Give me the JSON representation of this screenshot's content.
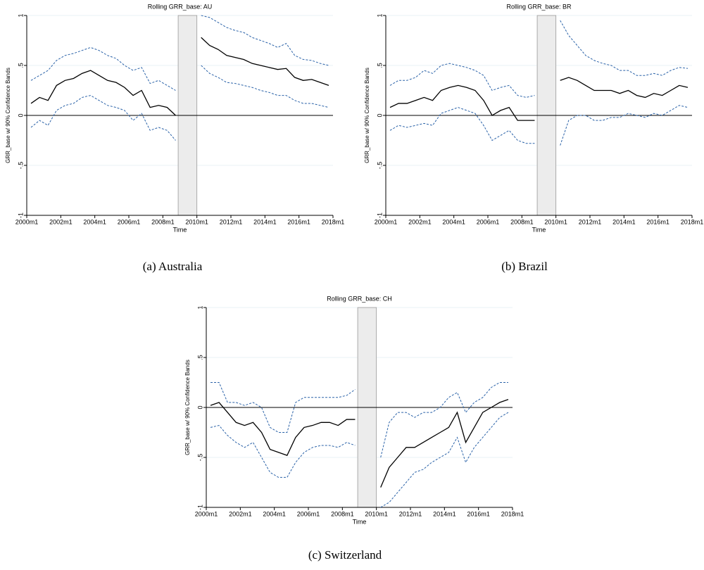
{
  "chart_data": [
    {
      "type": "line",
      "title": "Rolling GRR_base: AU",
      "caption": "(a) Australia",
      "xlabel": "Time",
      "ylabel": "GRR_base w/ 90% Confidence Bands",
      "x": [
        2000.25,
        2000.75,
        2001.25,
        2001.75,
        2002.25,
        2002.75,
        2003.25,
        2003.75,
        2004.25,
        2004.75,
        2005.25,
        2005.75,
        2006.25,
        2006.75,
        2007.25,
        2007.75,
        2008.25,
        2008.75,
        2009.25,
        2009.75,
        2010.25,
        2010.75,
        2011.25,
        2011.75,
        2012.25,
        2012.75,
        2013.25,
        2013.75,
        2014.25,
        2014.75,
        2015.25,
        2015.75,
        2016.25,
        2016.75,
        2017.25,
        2017.75
      ],
      "series": [
        {
          "color": "#000000",
          "dash": false,
          "values": [
            0.12,
            0.18,
            0.15,
            0.3,
            0.35,
            0.37,
            0.42,
            0.45,
            0.4,
            0.35,
            0.33,
            0.28,
            0.2,
            0.25,
            0.08,
            0.1,
            0.08,
            0.0,
            null,
            null,
            0.78,
            0.7,
            0.66,
            0.6,
            0.58,
            0.56,
            0.52,
            0.5,
            0.48,
            0.46,
            0.47,
            0.38,
            0.35,
            0.36,
            0.33,
            0.3
          ]
        },
        {
          "color": "#2a62a8",
          "dash": true,
          "values": [
            0.35,
            0.4,
            0.45,
            0.55,
            0.6,
            0.62,
            0.65,
            0.68,
            0.65,
            0.6,
            0.57,
            0.5,
            0.45,
            0.48,
            0.32,
            0.35,
            0.3,
            0.25,
            null,
            null,
            1.0,
            0.98,
            0.93,
            0.88,
            0.85,
            0.83,
            0.78,
            0.75,
            0.72,
            0.68,
            0.72,
            0.6,
            0.56,
            0.55,
            0.52,
            0.5
          ]
        },
        {
          "color": "#2a62a8",
          "dash": true,
          "values": [
            -0.12,
            -0.05,
            -0.1,
            0.05,
            0.1,
            0.12,
            0.18,
            0.2,
            0.15,
            0.1,
            0.08,
            0.05,
            -0.05,
            0.02,
            -0.15,
            -0.12,
            -0.15,
            -0.25,
            null,
            null,
            0.5,
            0.42,
            0.38,
            0.33,
            0.32,
            0.3,
            0.28,
            0.25,
            0.23,
            0.2,
            0.2,
            0.15,
            0.12,
            0.12,
            0.1,
            0.08
          ]
        }
      ],
      "shaded_x": [
        2008.9,
        2010.0
      ],
      "hline": 0,
      "xlim": [
        2000,
        2018
      ],
      "ylim": [
        -1,
        1
      ],
      "xticks": [
        {
          "value": 2000,
          "label": "2000m1"
        },
        {
          "value": 2002,
          "label": "2002m1"
        },
        {
          "value": 2004,
          "label": "2004m1"
        },
        {
          "value": 2006,
          "label": "2006m1"
        },
        {
          "value": 2008,
          "label": "2008m1"
        },
        {
          "value": 2010,
          "label": "2010m1"
        },
        {
          "value": 2012,
          "label": "2012m1"
        },
        {
          "value": 2014,
          "label": "2014m1"
        },
        {
          "value": 2016,
          "label": "2016m1"
        },
        {
          "value": 2018,
          "label": "2018m1"
        }
      ],
      "yticks": [
        -1,
        {
          "value": -0.5,
          "label": "-.5"
        },
        0,
        {
          "value": 0.5,
          "label": ".5"
        },
        1
      ],
      "grid": true
    },
    {
      "type": "line",
      "title": "Rolling GRR_base: BR",
      "caption": "(b) Brazil",
      "xlabel": "Time",
      "ylabel": "GRR_base w/ 90% Confidence Bands",
      "x": [
        2000.25,
        2000.75,
        2001.25,
        2001.75,
        2002.25,
        2002.75,
        2003.25,
        2003.75,
        2004.25,
        2004.75,
        2005.25,
        2005.75,
        2006.25,
        2006.75,
        2007.25,
        2007.75,
        2008.25,
        2008.75,
        2009.25,
        2009.75,
        2010.25,
        2010.75,
        2011.25,
        2011.75,
        2012.25,
        2012.75,
        2013.25,
        2013.75,
        2014.25,
        2014.75,
        2015.25,
        2015.75,
        2016.25,
        2016.75,
        2017.25,
        2017.75
      ],
      "series": [
        {
          "color": "#000000",
          "dash": false,
          "values": [
            0.08,
            0.12,
            0.12,
            0.15,
            0.18,
            0.15,
            0.25,
            0.28,
            0.3,
            0.28,
            0.25,
            0.15,
            0.0,
            0.05,
            0.08,
            -0.05,
            -0.05,
            -0.05,
            null,
            null,
            0.35,
            0.38,
            0.35,
            0.3,
            0.25,
            0.25,
            0.25,
            0.22,
            0.25,
            0.2,
            0.18,
            0.22,
            0.2,
            0.25,
            0.3,
            0.28
          ]
        },
        {
          "color": "#2a62a8",
          "dash": true,
          "values": [
            0.3,
            0.35,
            0.35,
            0.38,
            0.45,
            0.42,
            0.5,
            0.52,
            0.5,
            0.48,
            0.45,
            0.4,
            0.25,
            0.28,
            0.3,
            0.2,
            0.18,
            0.2,
            null,
            null,
            0.95,
            0.8,
            0.7,
            0.6,
            0.55,
            0.52,
            0.5,
            0.45,
            0.45,
            0.4,
            0.4,
            0.42,
            0.4,
            0.45,
            0.48,
            0.47
          ]
        },
        {
          "color": "#2a62a8",
          "dash": true,
          "values": [
            -0.15,
            -0.1,
            -0.12,
            -0.1,
            -0.08,
            -0.1,
            0.02,
            0.05,
            0.08,
            0.05,
            0.02,
            -0.1,
            -0.25,
            -0.2,
            -0.15,
            -0.25,
            -0.28,
            -0.28,
            null,
            null,
            -0.3,
            -0.05,
            0.0,
            0.0,
            -0.05,
            -0.05,
            -0.02,
            -0.02,
            0.02,
            0.0,
            -0.02,
            0.02,
            0.0,
            0.05,
            0.1,
            0.08
          ]
        }
      ],
      "shaded_x": [
        2008.9,
        2010.0
      ],
      "hline": 0,
      "xlim": [
        2000,
        2018
      ],
      "ylim": [
        -1,
        1
      ],
      "xticks": [
        {
          "value": 2000,
          "label": "2000m1"
        },
        {
          "value": 2002,
          "label": "2002m1"
        },
        {
          "value": 2004,
          "label": "2004m1"
        },
        {
          "value": 2006,
          "label": "2006m1"
        },
        {
          "value": 2008,
          "label": "2008m1"
        },
        {
          "value": 2010,
          "label": "2010m1"
        },
        {
          "value": 2012,
          "label": "2012m1"
        },
        {
          "value": 2014,
          "label": "2014m1"
        },
        {
          "value": 2016,
          "label": "2016m1"
        },
        {
          "value": 2018,
          "label": "2018m1"
        }
      ],
      "yticks": [
        -1,
        {
          "value": -0.5,
          "label": "-.5"
        },
        0,
        {
          "value": 0.5,
          "label": ".5"
        },
        1
      ],
      "grid": true
    },
    {
      "type": "line",
      "title": "Rolling GRR_base: CH",
      "caption": "(c) Switzerland",
      "xlabel": "Time",
      "ylabel": "GRR_base w/ 90% Confidence Bands",
      "x": [
        2000.25,
        2000.75,
        2001.25,
        2001.75,
        2002.25,
        2002.75,
        2003.25,
        2003.75,
        2004.25,
        2004.75,
        2005.25,
        2005.75,
        2006.25,
        2006.75,
        2007.25,
        2007.75,
        2008.25,
        2008.75,
        2009.25,
        2009.75,
        2010.25,
        2010.75,
        2011.25,
        2011.75,
        2012.25,
        2012.75,
        2013.25,
        2013.75,
        2014.25,
        2014.75,
        2015.25,
        2015.75,
        2016.25,
        2016.75,
        2017.25,
        2017.75
      ],
      "series": [
        {
          "color": "#000000",
          "dash": false,
          "values": [
            0.02,
            0.05,
            -0.05,
            -0.15,
            -0.18,
            -0.15,
            -0.25,
            -0.42,
            -0.45,
            -0.48,
            -0.3,
            -0.2,
            -0.18,
            -0.15,
            -0.15,
            -0.18,
            -0.12,
            -0.12,
            null,
            null,
            -0.8,
            -0.6,
            -0.5,
            -0.4,
            -0.4,
            -0.35,
            -0.3,
            -0.25,
            -0.2,
            -0.05,
            -0.35,
            -0.2,
            -0.05,
            0.0,
            0.05,
            0.08
          ]
        },
        {
          "color": "#2a62a8",
          "dash": true,
          "values": [
            0.25,
            0.25,
            0.05,
            0.05,
            0.02,
            0.05,
            0.0,
            -0.2,
            -0.25,
            -0.25,
            0.05,
            0.1,
            0.1,
            0.1,
            0.1,
            0.1,
            0.12,
            0.18,
            null,
            null,
            -0.5,
            -0.15,
            -0.05,
            -0.05,
            -0.1,
            -0.05,
            -0.05,
            0.0,
            0.1,
            0.15,
            -0.05,
            0.05,
            0.1,
            0.2,
            0.25,
            0.25
          ]
        },
        {
          "color": "#2a62a8",
          "dash": true,
          "values": [
            -0.2,
            -0.18,
            -0.28,
            -0.35,
            -0.4,
            -0.35,
            -0.5,
            -0.65,
            -0.7,
            -0.7,
            -0.55,
            -0.45,
            -0.4,
            -0.38,
            -0.38,
            -0.4,
            -0.35,
            -0.38,
            null,
            null,
            -1.0,
            -0.95,
            -0.85,
            -0.75,
            -0.65,
            -0.62,
            -0.55,
            -0.5,
            -0.45,
            -0.3,
            -0.55,
            -0.4,
            -0.3,
            -0.2,
            -0.1,
            -0.05
          ]
        }
      ],
      "shaded_x": [
        2008.9,
        2010.0
      ],
      "hline": 0,
      "xlim": [
        2000,
        2018
      ],
      "ylim": [
        -1,
        1
      ],
      "xticks": [
        {
          "value": 2000,
          "label": "2000m1"
        },
        {
          "value": 2002,
          "label": "2002m1"
        },
        {
          "value": 2004,
          "label": "2004m1"
        },
        {
          "value": 2006,
          "label": "2006m1"
        },
        {
          "value": 2008,
          "label": "2008m1"
        },
        {
          "value": 2010,
          "label": "2010m1"
        },
        {
          "value": 2012,
          "label": "2012m1"
        },
        {
          "value": 2014,
          "label": "2014m1"
        },
        {
          "value": 2016,
          "label": "2016m1"
        },
        {
          "value": 2018,
          "label": "2018m1"
        }
      ],
      "yticks": [
        -1,
        {
          "value": -0.5,
          "label": "-.5"
        },
        0,
        {
          "value": 0.5,
          "label": ".5"
        },
        1
      ],
      "grid": true
    }
  ]
}
